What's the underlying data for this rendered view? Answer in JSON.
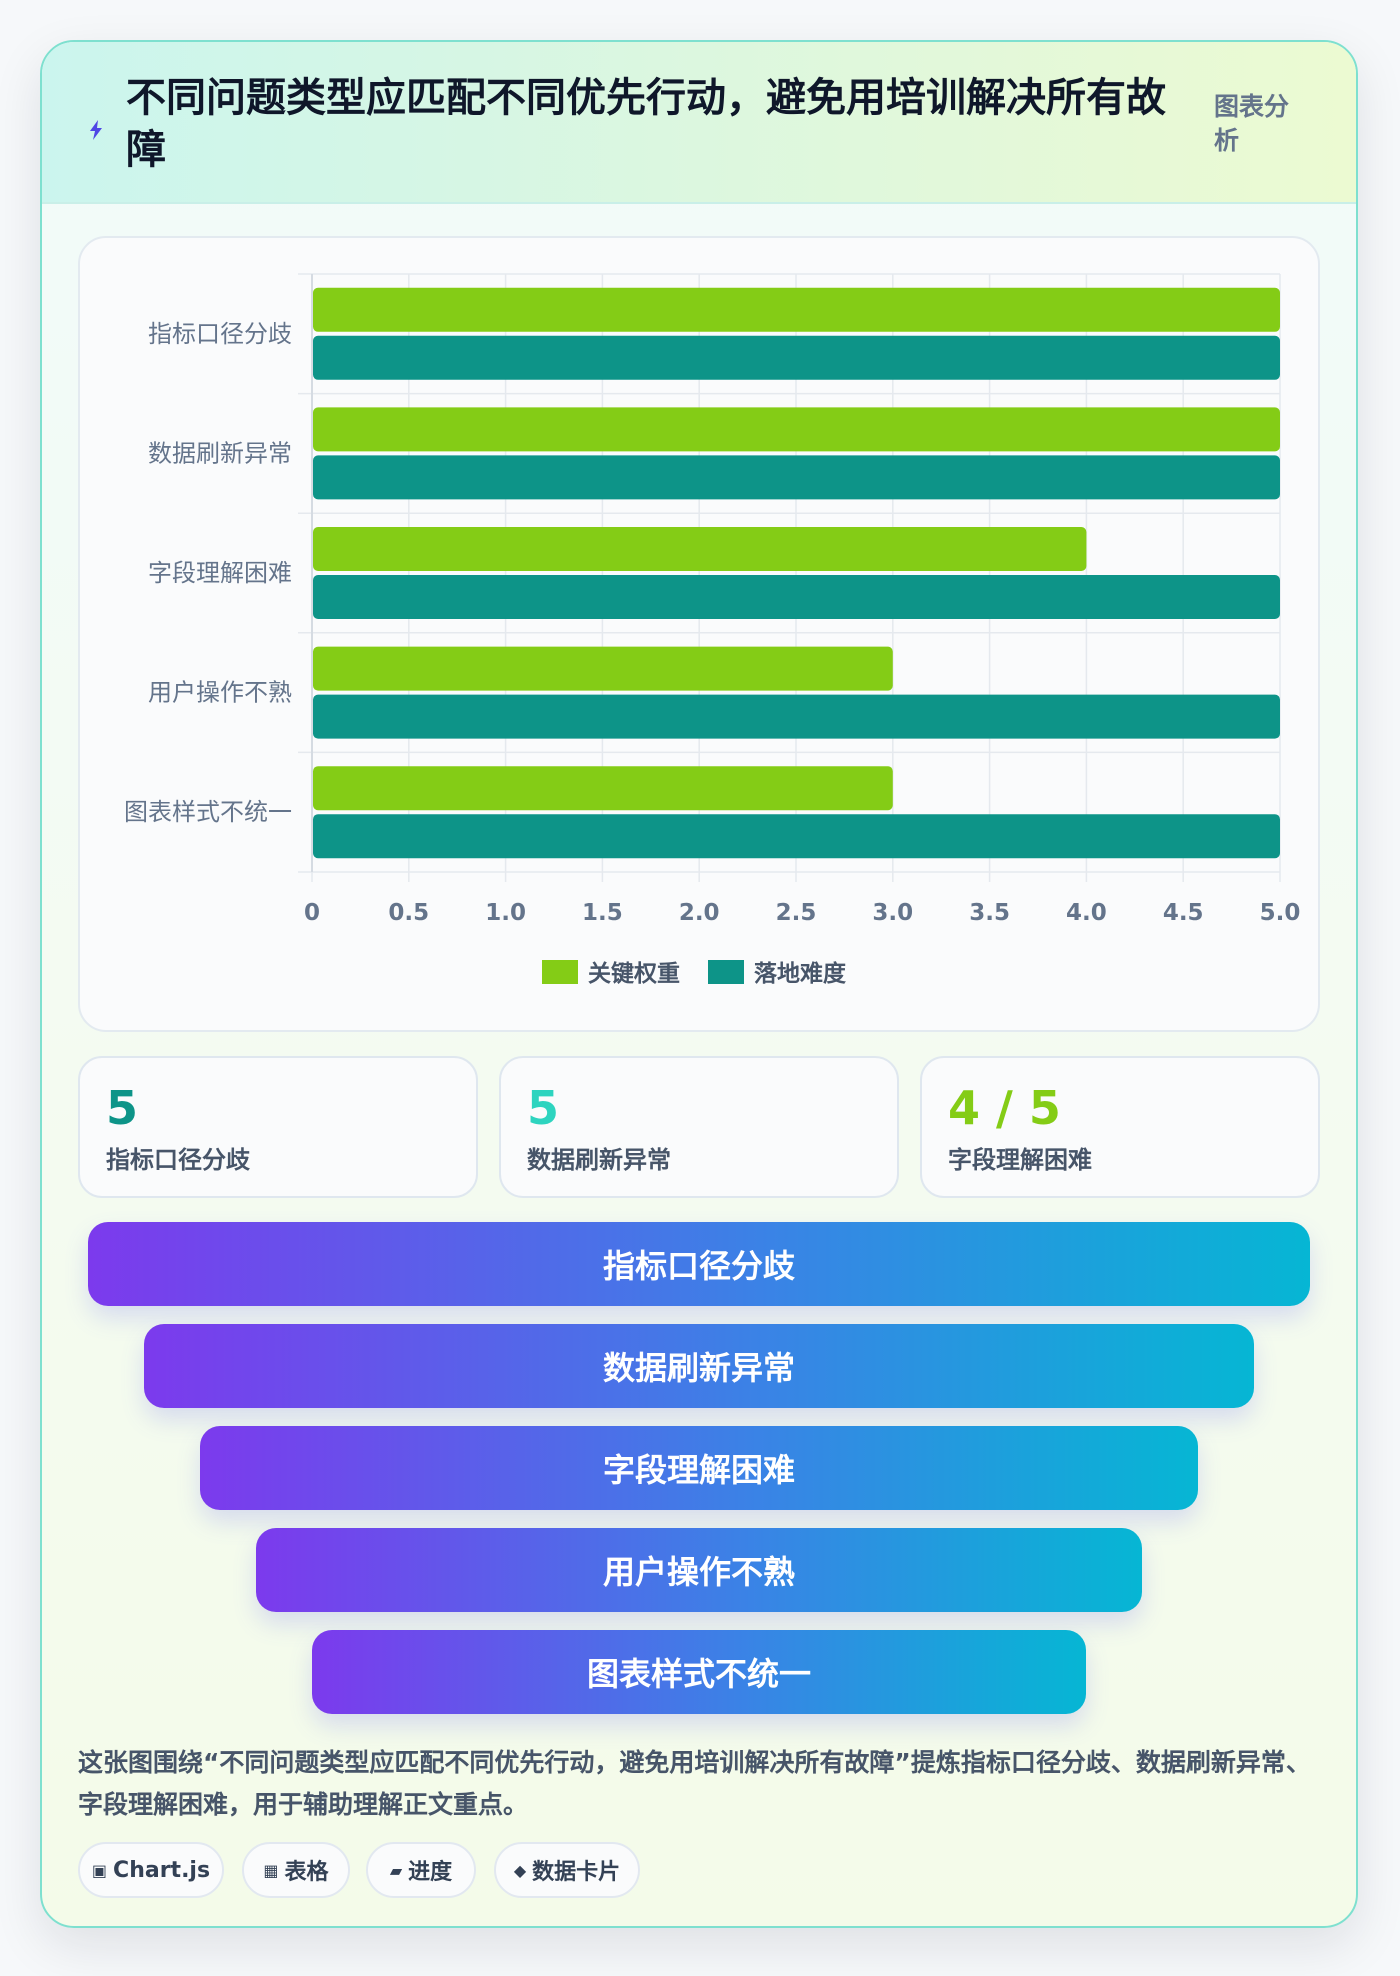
{
  "header": {
    "title": "不同问题类型应匹配不同优先行动，避免用培训解决所有故障",
    "tag": "图表分析",
    "icon": "lightning-icon"
  },
  "chart_data": {
    "type": "bar",
    "orientation": "horizontal",
    "categories": [
      "指标口径分歧",
      "数据刷新异常",
      "字段理解困难",
      "用户操作不熟",
      "图表样式不统一"
    ],
    "series": [
      {
        "name": "关键权重",
        "values": [
          5,
          5,
          4,
          3,
          3
        ],
        "color": "#84cc16"
      },
      {
        "name": "落地难度",
        "values": [
          5,
          5,
          5,
          5,
          5
        ],
        "color": "#0d9488"
      }
    ],
    "xlim": [
      0,
      5
    ],
    "x_ticks": [
      "0",
      "0.5",
      "1.0",
      "1.5",
      "2.0",
      "2.5",
      "3.0",
      "3.5",
      "4.0",
      "4.5",
      "5.0"
    ],
    "grid": true,
    "legend_position": "bottom"
  },
  "kpis": [
    {
      "value": "5",
      "label": "指标口径分歧",
      "color": "#0d9488"
    },
    {
      "value": "5",
      "label": "数据刷新异常",
      "color": "#2dd4bf"
    },
    {
      "value": "4 / 5",
      "label": "字段理解困难",
      "color": "#84cc16"
    }
  ],
  "funnel": [
    "指标口径分歧",
    "数据刷新异常",
    "字段理解困难",
    "用户操作不熟",
    "图表样式不统一"
  ],
  "caption": "这张图围绕“不同问题类型应匹配不同优先行动，避免用培训解决所有故障”提炼指标口径分歧、数据刷新异常、字段理解困难，用于辅助理解正文重点。",
  "chips": [
    {
      "icon": "▣",
      "icon_name": "chart-icon",
      "label": "Chart.js"
    },
    {
      "icon": "▦",
      "icon_name": "table-icon",
      "label": "表格"
    },
    {
      "icon": "▰",
      "icon_name": "progress-icon",
      "label": "进度"
    },
    {
      "icon": "◆",
      "icon_name": "card-icon",
      "label": "数据卡片"
    }
  ]
}
